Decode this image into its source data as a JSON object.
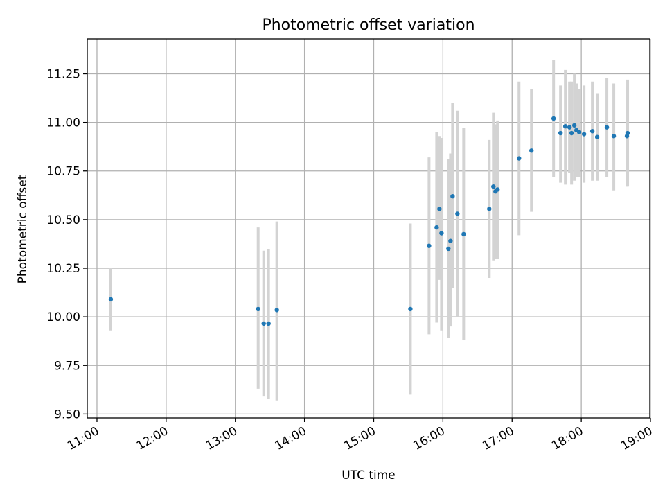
{
  "chart_data": {
    "type": "scatter",
    "title": "Photometric offset variation",
    "xlabel": "UTC time",
    "ylabel": "Photometric offset",
    "x_unit": "hours (UTC)",
    "xlim": [
      10.86,
      18.99
    ],
    "ylim": [
      9.48,
      11.43
    ],
    "x_ticks": [
      {
        "value": 11,
        "label": "11:00"
      },
      {
        "value": 12,
        "label": "12:00"
      },
      {
        "value": 13,
        "label": "13:00"
      },
      {
        "value": 14,
        "label": "14:00"
      },
      {
        "value": 15,
        "label": "15:00"
      },
      {
        "value": 16,
        "label": "16:00"
      },
      {
        "value": 17,
        "label": "17:00"
      },
      {
        "value": 18,
        "label": "18:00"
      },
      {
        "value": 19,
        "label": "19:00"
      }
    ],
    "y_ticks": [
      {
        "value": 9.5,
        "label": "9.50"
      },
      {
        "value": 9.75,
        "label": "9.75"
      },
      {
        "value": 10.0,
        "label": "10.00"
      },
      {
        "value": 10.25,
        "label": "10.25"
      },
      {
        "value": 10.5,
        "label": "10.50"
      },
      {
        "value": 10.75,
        "label": "10.75"
      },
      {
        "value": 11.0,
        "label": "11.00"
      },
      {
        "value": 11.25,
        "label": "11.25"
      }
    ],
    "grid": true,
    "colors": {
      "points": "#1f77b4",
      "error_bars": "#d3d3d3",
      "grid": "#b0b0b0"
    },
    "points": [
      {
        "x": 11.2,
        "y": 10.09,
        "yerr_low": 9.93,
        "yerr_high": 10.25
      },
      {
        "x": 13.33,
        "y": 10.04,
        "yerr_low": 9.63,
        "yerr_high": 10.46
      },
      {
        "x": 13.41,
        "y": 9.965,
        "yerr_low": 9.59,
        "yerr_high": 10.34
      },
      {
        "x": 13.48,
        "y": 9.965,
        "yerr_low": 9.58,
        "yerr_high": 10.35
      },
      {
        "x": 13.6,
        "y": 10.035,
        "yerr_low": 9.57,
        "yerr_high": 10.49
      },
      {
        "x": 15.53,
        "y": 10.04,
        "yerr_low": 9.6,
        "yerr_high": 10.48
      },
      {
        "x": 15.8,
        "y": 10.365,
        "yerr_low": 9.91,
        "yerr_high": 10.82
      },
      {
        "x": 15.91,
        "y": 10.46,
        "yerr_low": 9.97,
        "yerr_high": 10.95
      },
      {
        "x": 15.95,
        "y": 10.555,
        "yerr_low": 10.19,
        "yerr_high": 10.93
      },
      {
        "x": 15.98,
        "y": 10.43,
        "yerr_low": 9.93,
        "yerr_high": 10.92
      },
      {
        "x": 16.08,
        "y": 10.35,
        "yerr_low": 9.89,
        "yerr_high": 10.81
      },
      {
        "x": 16.11,
        "y": 10.39,
        "yerr_low": 9.95,
        "yerr_high": 10.84
      },
      {
        "x": 16.14,
        "y": 10.62,
        "yerr_low": 10.15,
        "yerr_high": 11.1
      },
      {
        "x": 16.21,
        "y": 10.53,
        "yerr_low": 10.0,
        "yerr_high": 11.06
      },
      {
        "x": 16.3,
        "y": 10.425,
        "yerr_low": 9.88,
        "yerr_high": 10.97
      },
      {
        "x": 16.67,
        "y": 10.555,
        "yerr_low": 10.2,
        "yerr_high": 10.91
      },
      {
        "x": 16.73,
        "y": 10.67,
        "yerr_low": 10.29,
        "yerr_high": 11.05
      },
      {
        "x": 16.76,
        "y": 10.645,
        "yerr_low": 10.3,
        "yerr_high": 10.99
      },
      {
        "x": 16.79,
        "y": 10.655,
        "yerr_low": 10.3,
        "yerr_high": 11.01
      },
      {
        "x": 17.1,
        "y": 10.815,
        "yerr_low": 10.42,
        "yerr_high": 11.21
      },
      {
        "x": 17.28,
        "y": 10.855,
        "yerr_low": 10.54,
        "yerr_high": 11.17
      },
      {
        "x": 17.6,
        "y": 11.02,
        "yerr_low": 10.72,
        "yerr_high": 11.32
      },
      {
        "x": 17.7,
        "y": 10.945,
        "yerr_low": 10.69,
        "yerr_high": 11.19
      },
      {
        "x": 17.77,
        "y": 10.98,
        "yerr_low": 10.68,
        "yerr_high": 11.27
      },
      {
        "x": 17.83,
        "y": 10.975,
        "yerr_low": 10.74,
        "yerr_high": 11.21
      },
      {
        "x": 17.86,
        "y": 10.945,
        "yerr_low": 10.68,
        "yerr_high": 11.21
      },
      {
        "x": 17.9,
        "y": 10.985,
        "yerr_low": 10.7,
        "yerr_high": 11.25
      },
      {
        "x": 17.93,
        "y": 10.96,
        "yerr_low": 10.72,
        "yerr_high": 11.2
      },
      {
        "x": 17.97,
        "y": 10.95,
        "yerr_low": 10.72,
        "yerr_high": 11.17
      },
      {
        "x": 18.04,
        "y": 10.94,
        "yerr_low": 10.69,
        "yerr_high": 11.19
      },
      {
        "x": 18.16,
        "y": 10.955,
        "yerr_low": 10.7,
        "yerr_high": 11.21
      },
      {
        "x": 18.23,
        "y": 10.925,
        "yerr_low": 10.7,
        "yerr_high": 11.15
      },
      {
        "x": 18.37,
        "y": 10.975,
        "yerr_low": 10.72,
        "yerr_high": 11.23
      },
      {
        "x": 18.47,
        "y": 10.93,
        "yerr_low": 10.65,
        "yerr_high": 11.2
      },
      {
        "x": 18.66,
        "y": 10.93,
        "yerr_low": 10.67,
        "yerr_high": 11.18
      },
      {
        "x": 18.67,
        "y": 10.945,
        "yerr_low": 10.67,
        "yerr_high": 11.22
      }
    ]
  }
}
